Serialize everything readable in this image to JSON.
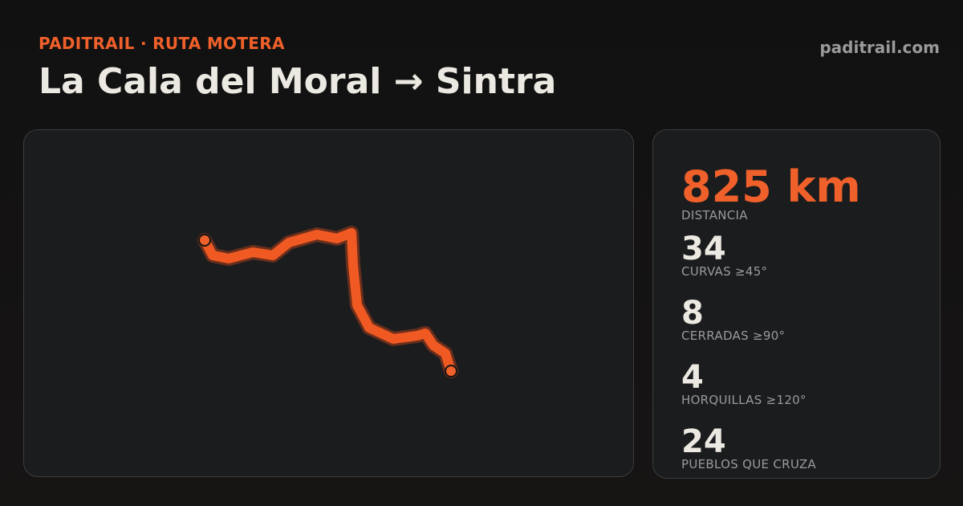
{
  "header": {
    "brand": "PADITRAIL · RUTA MOTERA",
    "title": "La Cala del Moral → Sintra",
    "site": "paditrail.com"
  },
  "stats": [
    {
      "value": "825 km",
      "label": "DISTANCIA"
    },
    {
      "value": "34",
      "label": "CURVAS ≥45°"
    },
    {
      "value": "8",
      "label": "CERRADAS ≥90°"
    },
    {
      "value": "4",
      "label": "HORQUILLAS ≥120°"
    },
    {
      "value": "24",
      "label": "PUEBLOS QUE CRUZA"
    }
  ]
}
